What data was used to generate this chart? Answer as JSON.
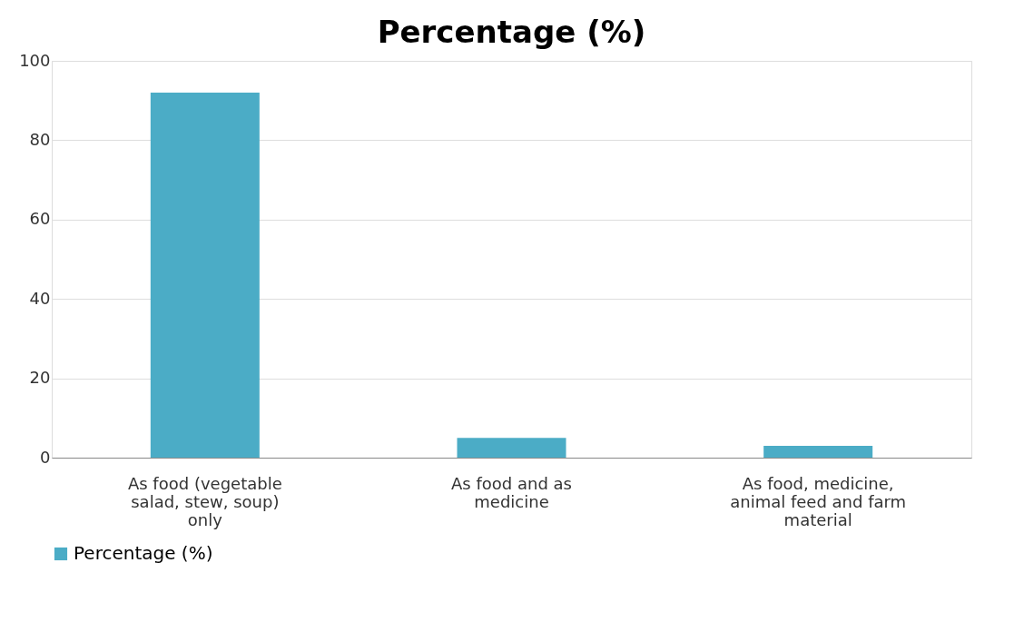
{
  "chart_data": {
    "type": "bar",
    "title": "Percentage (%)",
    "categories": [
      "As food (vegetable salad, stew, soup) only",
      "As food and as medicine",
      "As food, medicine, animal feed and farm material"
    ],
    "series": [
      {
        "name": "Percentage (%)",
        "color": "#4bacc6",
        "values": [
          92,
          5,
          3
        ]
      }
    ],
    "ylim": [
      0,
      100
    ],
    "yticks": [
      0,
      20,
      40,
      60,
      80,
      100
    ],
    "grid": "y",
    "legend": "bottom"
  }
}
